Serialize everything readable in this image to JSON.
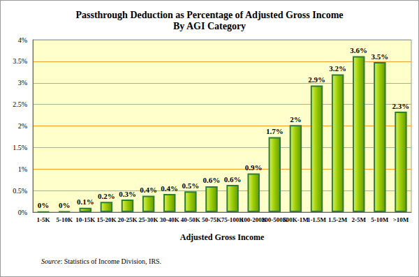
{
  "chart_data": {
    "type": "bar",
    "title": "Passthrough Deduction as Percentage of Adjusted Gross Income",
    "subtitle": "By AGI Category",
    "x_label": "Adjusted Gross Income",
    "source": "Source: Statistics of Income Division, IRS.",
    "categories": [
      "1-5K",
      "5-10K",
      "10-15K",
      "15-20K",
      "20-25K",
      "25-30K",
      "30-40K",
      "40-50K",
      "50-75K",
      "75-100K",
      "100-200K",
      "200-500K",
      "500K-1M",
      "1-1.5M",
      "1.5-2M",
      "2-5M",
      "5-10M",
      ">10M"
    ],
    "values": [
      0.01,
      0.02,
      0.1,
      0.24,
      0.29,
      0.38,
      0.42,
      0.48,
      0.6,
      0.63,
      0.9,
      1.74,
      2.02,
      2.94,
      3.2,
      3.62,
      3.48,
      2.33
    ],
    "value_labels": [
      "0%",
      "0%",
      "0.1%",
      "0.2%",
      "0.3%",
      "0.4%",
      "0.4%",
      "0.5%",
      "0.6%",
      "0.6%",
      "0.9%",
      "1.7%",
      "2%",
      "2.9%",
      "3.2%",
      "3.6%",
      "3.5%",
      "2.3%"
    ],
    "color": "#99cc00",
    "data_labels": true,
    "ylim": [
      0,
      4
    ],
    "yticks": [
      {
        "value": 0,
        "label": "0%"
      },
      {
        "value": 0.5,
        "label": "0.5%"
      },
      {
        "value": 1,
        "label": "1%"
      },
      {
        "value": 1.5,
        "label": "1.5%"
      },
      {
        "value": 2,
        "label": "2%"
      },
      {
        "value": 2.5,
        "label": "2.5%"
      },
      {
        "value": 3,
        "label": "3%"
      },
      {
        "value": 3.5,
        "label": "3.5%"
      },
      {
        "value": 4,
        "label": "4%"
      }
    ],
    "grid": true
  }
}
